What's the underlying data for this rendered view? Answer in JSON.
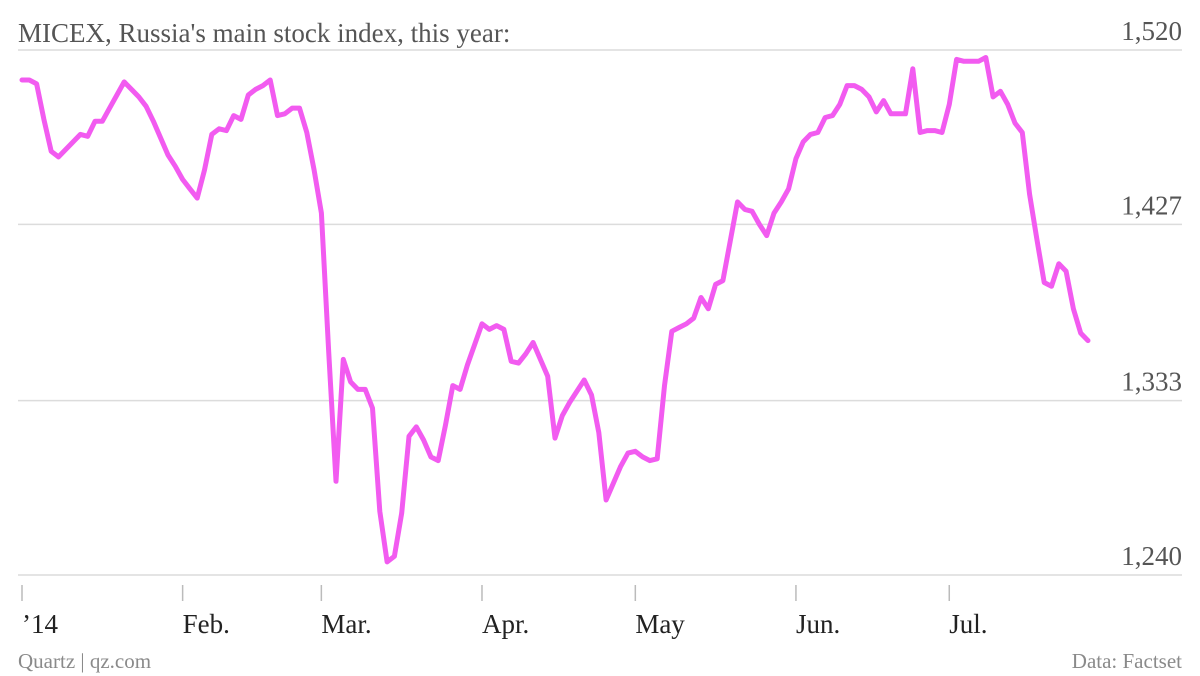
{
  "chart_data": {
    "type": "line",
    "title": "MICEX, Russia's main stock index, this year:",
    "source_left": "Quartz | qz.com",
    "source_right": "Data: Factset",
    "categories": [
      "’14",
      null,
      null,
      null,
      null,
      null,
      null,
      null,
      null,
      null,
      null,
      null,
      null,
      null,
      null,
      null,
      null,
      null,
      null,
      null,
      null,
      null,
      "Feb.",
      null,
      null,
      null,
      null,
      null,
      null,
      null,
      null,
      null,
      null,
      null,
      null,
      null,
      null,
      null,
      null,
      null,
      null,
      "Mar.",
      null,
      null,
      null,
      null,
      null,
      null,
      null,
      null,
      null,
      null,
      null,
      null,
      null,
      null,
      null,
      null,
      null,
      null,
      null,
      null,
      null,
      "Apr.",
      null,
      null,
      null,
      null,
      null,
      null,
      null,
      null,
      null,
      null,
      null,
      null,
      null,
      null,
      null,
      null,
      null,
      null,
      null,
      null,
      "May",
      null,
      null,
      null,
      null,
      null,
      null,
      null,
      null,
      null,
      null,
      null,
      null,
      null,
      null,
      null,
      null,
      null,
      null,
      null,
      null,
      null,
      "Jun.",
      null,
      null,
      null,
      null,
      null,
      null,
      null,
      null,
      null,
      null,
      null,
      null,
      null,
      null,
      null,
      null,
      null,
      null,
      null,
      null,
      "Jul.",
      null,
      null,
      null,
      null,
      null,
      null,
      null,
      null,
      null,
      null,
      null,
      null,
      null,
      null,
      null,
      null,
      null,
      null,
      null
    ],
    "series": [
      {
        "name": "MICEX",
        "color": "#f25bf0",
        "values": [
          1504,
          1504,
          1502,
          1483,
          1466,
          1463,
          1467,
          1471,
          1475,
          1474,
          1482,
          1482,
          1489,
          1496,
          1503,
          1499,
          1495,
          1490,
          1482,
          1473,
          1464,
          1458,
          1451,
          1446,
          1441,
          1456,
          1475,
          1478,
          1477,
          1485,
          1483,
          1496,
          1499,
          1501,
          1504,
          1485,
          1486,
          1489,
          1489,
          1476,
          1456,
          1433,
          1359,
          1290,
          1355,
          1343,
          1339,
          1339,
          1329,
          1274,
          1247,
          1250,
          1273,
          1314,
          1319,
          1312,
          1303,
          1301,
          1320,
          1341,
          1339,
          1352,
          1363,
          1374,
          1371,
          1373,
          1371,
          1354,
          1353,
          1358,
          1364,
          1355,
          1346,
          1313,
          1325,
          1332,
          1338,
          1344,
          1336,
          1316,
          1280,
          1289,
          1298,
          1305,
          1306,
          1303,
          1301,
          1302,
          1341,
          1370,
          1372,
          1374,
          1377,
          1388,
          1382,
          1395,
          1397,
          1418,
          1439,
          1435,
          1434,
          1427,
          1421,
          1433,
          1439,
          1446,
          1462,
          1471,
          1475,
          1476,
          1484,
          1485,
          1491,
          1501,
          1501,
          1499,
          1495,
          1487,
          1493,
          1486,
          1486,
          1486,
          1510,
          1476,
          1477,
          1477,
          1476,
          1491,
          1515,
          1514,
          1514,
          1514,
          1516,
          1495,
          1498,
          1491,
          1481,
          1476,
          1443,
          1419,
          1396,
          1394,
          1406,
          1402,
          1382,
          1369,
          1365
        ]
      }
    ],
    "ylim": [
      1240,
      1520
    ],
    "yticks": [
      {
        "value": 1240,
        "label": "1,240"
      },
      {
        "value": 1333,
        "label": "1,333"
      },
      {
        "value": 1427,
        "label": "1,427"
      },
      {
        "value": 1520,
        "label": "1,520"
      }
    ],
    "grid": true
  }
}
